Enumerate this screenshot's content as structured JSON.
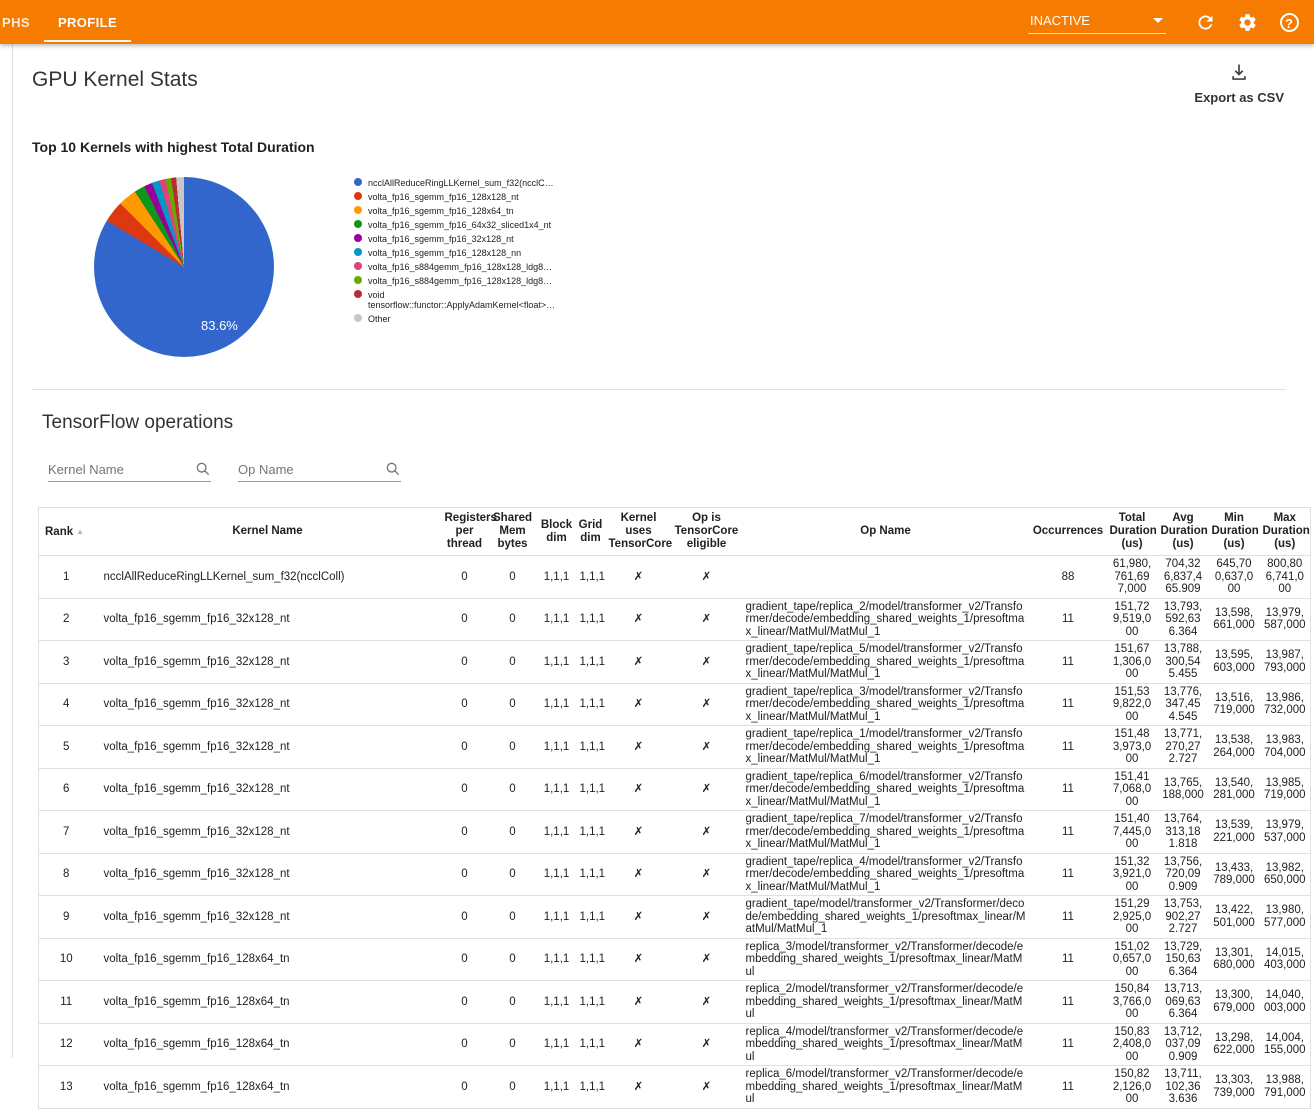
{
  "toolbar": {
    "tabs": [
      {
        "label": "PHS",
        "active": false
      },
      {
        "label": "PROFILE",
        "active": true
      }
    ],
    "run_selector_value": "INACTIVE"
  },
  "kernel_stats": {
    "title": "GPU Kernel Stats",
    "export_label": "Export as CSV",
    "chart_title": "Top 10 Kernels with highest Total Duration"
  },
  "chart_data": {
    "type": "pie",
    "title": "Top 10 Kernels with highest Total Duration",
    "legend_position": "right",
    "visible_slice_label": "83.6%",
    "labels": [
      "ncclAllReduceRingLLKernel_sum_f32(ncclC…",
      "volta_fp16_sgemm_fp16_128x128_nt",
      "volta_fp16_sgemm_fp16_128x64_tn",
      "volta_fp16_sgemm_fp16_64x32_sliced1x4_nt",
      "volta_fp16_sgemm_fp16_32x128_nt",
      "volta_fp16_sgemm_fp16_128x128_nn",
      "volta_fp16_s884gemm_fp16_128x128_ldg8…",
      "volta_fp16_s884gemm_fp16_128x128_ldg8…",
      "void tensorflow::functor::ApplyAdamKernel<float>…",
      "Other"
    ],
    "values": [
      83.6,
      3.9,
      3.3,
      1.9,
      1.5,
      1.4,
      1.1,
      1.0,
      0.9,
      1.4
    ],
    "colors": [
      "#3366cc",
      "#dc3912",
      "#ff9900",
      "#109618",
      "#990099",
      "#0099c6",
      "#dd4477",
      "#66aa00",
      "#b82e2e",
      "#c7c7c7"
    ]
  },
  "operations": {
    "title": "TensorFlow operations",
    "filters": {
      "kernel_name_placeholder": "Kernel Name",
      "op_name_placeholder": "Op Name"
    }
  },
  "table": {
    "headers": [
      "Rank",
      "Kernel Name",
      "Registers per thread",
      "Shared Mem bytes",
      "Block dim",
      "Grid dim",
      "Kernel uses TensorCore",
      "Op is TensorCore eligible",
      "Op Name",
      "Occurrences",
      "Total Duration (us)",
      "Avg Duration (us)",
      "Min Duration (us)",
      "Max Duration (us)"
    ],
    "rows": [
      [
        "1",
        "ncclAllReduceRingLLKernel_sum_f32(ncclColl)",
        "0",
        "0",
        "1,1,1",
        "1,1,1",
        "✗",
        "✗",
        "",
        "88",
        "61,980,761,697,000",
        "704,326,837,465.909",
        "645,700,637,000",
        "800,806,741,000"
      ],
      [
        "2",
        "volta_fp16_sgemm_fp16_32x128_nt",
        "0",
        "0",
        "1,1,1",
        "1,1,1",
        "✗",
        "✗",
        "gradient_tape/replica_2/model/transformer_v2/Transformer/decode/embedding_shared_weights_1/presoftmax_linear/MatMul/MatMul_1",
        "11",
        "151,729,519,000",
        "13,793,592,636.364",
        "13,598,661,000",
        "13,979,587,000"
      ],
      [
        "3",
        "volta_fp16_sgemm_fp16_32x128_nt",
        "0",
        "0",
        "1,1,1",
        "1,1,1",
        "✗",
        "✗",
        "gradient_tape/replica_5/model/transformer_v2/Transformer/decode/embedding_shared_weights_1/presoftmax_linear/MatMul/MatMul_1",
        "11",
        "151,671,306,000",
        "13,788,300,545.455",
        "13,595,603,000",
        "13,987,793,000"
      ],
      [
        "4",
        "volta_fp16_sgemm_fp16_32x128_nt",
        "0",
        "0",
        "1,1,1",
        "1,1,1",
        "✗",
        "✗",
        "gradient_tape/replica_3/model/transformer_v2/Transformer/decode/embedding_shared_weights_1/presoftmax_linear/MatMul/MatMul_1",
        "11",
        "151,539,822,000",
        "13,776,347,454.545",
        "13,516,719,000",
        "13,986,732,000"
      ],
      [
        "5",
        "volta_fp16_sgemm_fp16_32x128_nt",
        "0",
        "0",
        "1,1,1",
        "1,1,1",
        "✗",
        "✗",
        "gradient_tape/replica_1/model/transformer_v2/Transformer/decode/embedding_shared_weights_1/presoftmax_linear/MatMul/MatMul_1",
        "11",
        "151,483,973,000",
        "13,771,270,272.727",
        "13,538,264,000",
        "13,983,704,000"
      ],
      [
        "6",
        "volta_fp16_sgemm_fp16_32x128_nt",
        "0",
        "0",
        "1,1,1",
        "1,1,1",
        "✗",
        "✗",
        "gradient_tape/replica_6/model/transformer_v2/Transformer/decode/embedding_shared_weights_1/presoftmax_linear/MatMul/MatMul_1",
        "11",
        "151,417,068,000",
        "13,765,188,000",
        "13,540,281,000",
        "13,985,719,000"
      ],
      [
        "7",
        "volta_fp16_sgemm_fp16_32x128_nt",
        "0",
        "0",
        "1,1,1",
        "1,1,1",
        "✗",
        "✗",
        "gradient_tape/replica_7/model/transformer_v2/Transformer/decode/embedding_shared_weights_1/presoftmax_linear/MatMul/MatMul_1",
        "11",
        "151,407,445,000",
        "13,764,313,181.818",
        "13,539,221,000",
        "13,979,537,000"
      ],
      [
        "8",
        "volta_fp16_sgemm_fp16_32x128_nt",
        "0",
        "0",
        "1,1,1",
        "1,1,1",
        "✗",
        "✗",
        "gradient_tape/replica_4/model/transformer_v2/Transformer/decode/embedding_shared_weights_1/presoftmax_linear/MatMul/MatMul_1",
        "11",
        "151,323,921,000",
        "13,756,720,090.909",
        "13,433,789,000",
        "13,982,650,000"
      ],
      [
        "9",
        "volta_fp16_sgemm_fp16_32x128_nt",
        "0",
        "0",
        "1,1,1",
        "1,1,1",
        "✗",
        "✗",
        "gradient_tape/model/transformer_v2/Transformer/decode/embedding_shared_weights_1/presoftmax_linear/MatMul/MatMul_1",
        "11",
        "151,292,925,000",
        "13,753,902,272.727",
        "13,422,501,000",
        "13,980,577,000"
      ],
      [
        "10",
        "volta_fp16_sgemm_fp16_128x64_tn",
        "0",
        "0",
        "1,1,1",
        "1,1,1",
        "✗",
        "✗",
        "replica_3/model/transformer_v2/Transformer/decode/embedding_shared_weights_1/presoftmax_linear/MatMul",
        "11",
        "151,020,657,000",
        "13,729,150,636.364",
        "13,301,680,000",
        "14,015,403,000"
      ],
      [
        "11",
        "volta_fp16_sgemm_fp16_128x64_tn",
        "0",
        "0",
        "1,1,1",
        "1,1,1",
        "✗",
        "✗",
        "replica_2/model/transformer_v2/Transformer/decode/embedding_shared_weights_1/presoftmax_linear/MatMul",
        "11",
        "150,843,766,000",
        "13,713,069,636.364",
        "13,300,679,000",
        "14,040,003,000"
      ],
      [
        "12",
        "volta_fp16_sgemm_fp16_128x64_tn",
        "0",
        "0",
        "1,1,1",
        "1,1,1",
        "✗",
        "✗",
        "replica_4/model/transformer_v2/Transformer/decode/embedding_shared_weights_1/presoftmax_linear/MatMul",
        "11",
        "150,832,408,000",
        "13,712,037,090.909",
        "13,298,622,000",
        "14,004,155,000"
      ],
      [
        "13",
        "volta_fp16_sgemm_fp16_128x64_tn",
        "0",
        "0",
        "1,1,1",
        "1,1,1",
        "✗",
        "✗",
        "replica_6/model/transformer_v2/Transformer/decode/embedding_shared_weights_1/presoftmax_linear/MatMul",
        "11",
        "150,822,126,000",
        "13,711,102,363.636",
        "13,303,739,000",
        "13,988,791,000"
      ]
    ]
  }
}
